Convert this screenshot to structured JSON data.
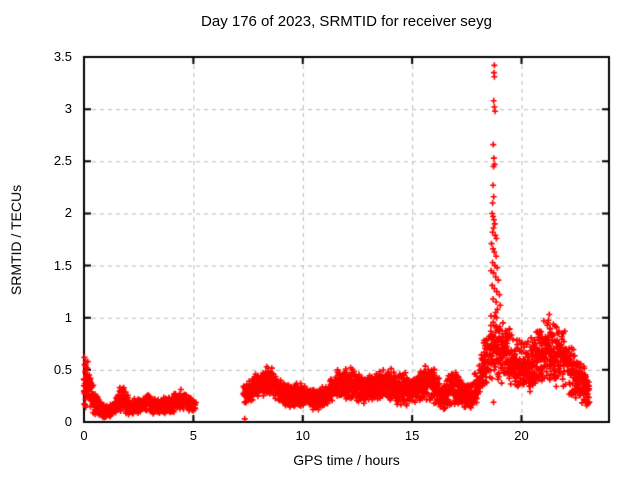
{
  "colors": {
    "marker": "#ff0000",
    "grid": "#bbbbbb",
    "border": "#000000",
    "text": "#000000",
    "background": "#ffffff"
  },
  "chart_data": {
    "type": "scatter",
    "marker": "plus",
    "title": "Day 176 of 2023, SRMTID for receiver seyg",
    "xlabel": "GPS time / hours",
    "ylabel": "SRMTID / TECUs",
    "xlim": [
      0,
      24
    ],
    "ylim": [
      0,
      3.5
    ],
    "grid": true,
    "legend": "none",
    "xticks": [
      0,
      5,
      10,
      15,
      20
    ],
    "xtick_labels": [
      "0",
      "5",
      "10",
      "15",
      "20"
    ],
    "yticks": [
      0,
      0.5,
      1,
      1.5,
      2,
      2.5,
      3,
      3.5
    ],
    "ytick_labels": [
      "0",
      "0.5",
      "1",
      "1.5",
      "2",
      "2.5",
      "3",
      "3.5"
    ],
    "gaps": [
      [
        5.12,
        7.28
      ]
    ],
    "time_step": 0.02,
    "points_per_step": 3,
    "seed": 176,
    "envelope_nodes": [
      [
        0.0,
        0.1,
        0.68
      ],
      [
        0.15,
        0.1,
        0.62
      ],
      [
        0.35,
        0.08,
        0.45
      ],
      [
        0.55,
        0.05,
        0.3
      ],
      [
        0.8,
        0.03,
        0.17
      ],
      [
        1.15,
        0.03,
        0.16
      ],
      [
        1.45,
        0.06,
        0.26
      ],
      [
        1.75,
        0.08,
        0.38
      ],
      [
        2.1,
        0.05,
        0.22
      ],
      [
        2.5,
        0.07,
        0.24
      ],
      [
        2.9,
        0.08,
        0.3
      ],
      [
        3.3,
        0.06,
        0.22
      ],
      [
        3.7,
        0.08,
        0.25
      ],
      [
        4.1,
        0.08,
        0.28
      ],
      [
        4.4,
        0.1,
        0.33
      ],
      [
        4.75,
        0.08,
        0.26
      ],
      [
        5.1,
        0.1,
        0.22
      ],
      [
        7.3,
        0.15,
        0.38
      ],
      [
        7.7,
        0.18,
        0.45
      ],
      [
        8.1,
        0.22,
        0.52
      ],
      [
        8.4,
        0.25,
        0.58
      ],
      [
        8.75,
        0.2,
        0.5
      ],
      [
        9.1,
        0.14,
        0.4
      ],
      [
        9.5,
        0.13,
        0.36
      ],
      [
        9.9,
        0.15,
        0.4
      ],
      [
        10.3,
        0.12,
        0.36
      ],
      [
        10.7,
        0.1,
        0.33
      ],
      [
        11.1,
        0.14,
        0.38
      ],
      [
        11.6,
        0.2,
        0.52
      ],
      [
        12.0,
        0.22,
        0.57
      ],
      [
        12.4,
        0.2,
        0.5
      ],
      [
        12.8,
        0.16,
        0.44
      ],
      [
        13.2,
        0.18,
        0.46
      ],
      [
        13.6,
        0.2,
        0.52
      ],
      [
        13.95,
        0.2,
        0.55
      ],
      [
        14.3,
        0.16,
        0.48
      ],
      [
        14.7,
        0.15,
        0.5
      ],
      [
        15.1,
        0.16,
        0.46
      ],
      [
        15.6,
        0.2,
        0.55
      ],
      [
        16.0,
        0.16,
        0.52
      ],
      [
        16.4,
        0.1,
        0.38
      ],
      [
        16.8,
        0.16,
        0.52
      ],
      [
        17.2,
        0.12,
        0.45
      ],
      [
        17.6,
        0.1,
        0.38
      ],
      [
        18.0,
        0.16,
        0.52
      ],
      [
        18.3,
        0.28,
        0.85
      ],
      [
        18.6,
        0.35,
        1.05
      ],
      [
        19.0,
        0.38,
        1.08
      ],
      [
        19.3,
        0.32,
        1.0
      ],
      [
        19.7,
        0.28,
        0.85
      ],
      [
        20.1,
        0.25,
        0.78
      ],
      [
        20.5,
        0.25,
        0.85
      ],
      [
        20.9,
        0.3,
        1.0
      ],
      [
        21.3,
        0.32,
        1.05
      ],
      [
        21.7,
        0.3,
        0.98
      ],
      [
        22.1,
        0.26,
        0.85
      ],
      [
        22.5,
        0.18,
        0.68
      ],
      [
        22.85,
        0.12,
        0.58
      ],
      [
        23.1,
        0.1,
        0.45
      ]
    ],
    "spike_points": [
      [
        18.76,
        3.42
      ],
      [
        18.74,
        3.35
      ],
      [
        18.76,
        3.31
      ],
      [
        18.73,
        3.08
      ],
      [
        18.76,
        3.02
      ],
      [
        18.79,
        2.98
      ],
      [
        18.71,
        2.66
      ],
      [
        18.74,
        2.53
      ],
      [
        18.77,
        2.47
      ],
      [
        18.72,
        2.45
      ],
      [
        18.7,
        2.27
      ],
      [
        18.73,
        2.16
      ],
      [
        18.68,
        2.1
      ],
      [
        18.66,
        2.0
      ],
      [
        18.7,
        1.97
      ],
      [
        18.74,
        1.94
      ],
      [
        18.78,
        1.9
      ],
      [
        18.72,
        1.86
      ],
      [
        18.68,
        1.82
      ],
      [
        18.8,
        1.79
      ],
      [
        18.85,
        1.76
      ],
      [
        18.63,
        1.71
      ],
      [
        18.7,
        1.66
      ],
      [
        18.76,
        1.63
      ],
      [
        18.84,
        1.59
      ],
      [
        18.68,
        1.53
      ],
      [
        18.78,
        1.5
      ],
      [
        18.89,
        1.48
      ],
      [
        18.61,
        1.45
      ],
      [
        18.72,
        1.43
      ],
      [
        18.82,
        1.39
      ],
      [
        18.94,
        1.36
      ],
      [
        18.66,
        1.31
      ],
      [
        18.76,
        1.28
      ],
      [
        18.87,
        1.25
      ],
      [
        18.99,
        1.22
      ],
      [
        18.7,
        1.18
      ],
      [
        18.84,
        1.15
      ],
      [
        19.03,
        1.12
      ],
      [
        18.9,
        1.08
      ]
    ],
    "isolated_points": [
      [
        7.35,
        0.03
      ],
      [
        18.72,
        0.19
      ]
    ],
    "start_points": [
      [
        0.02,
        0.62
      ],
      [
        0.03,
        0.55
      ],
      [
        0.05,
        0.48
      ],
      [
        0.04,
        0.4
      ],
      [
        0.06,
        0.34
      ],
      [
        0.02,
        0.28
      ],
      [
        0.07,
        0.22
      ],
      [
        0.05,
        0.16
      ],
      [
        0.08,
        0.58
      ],
      [
        0.1,
        0.45
      ]
    ]
  }
}
